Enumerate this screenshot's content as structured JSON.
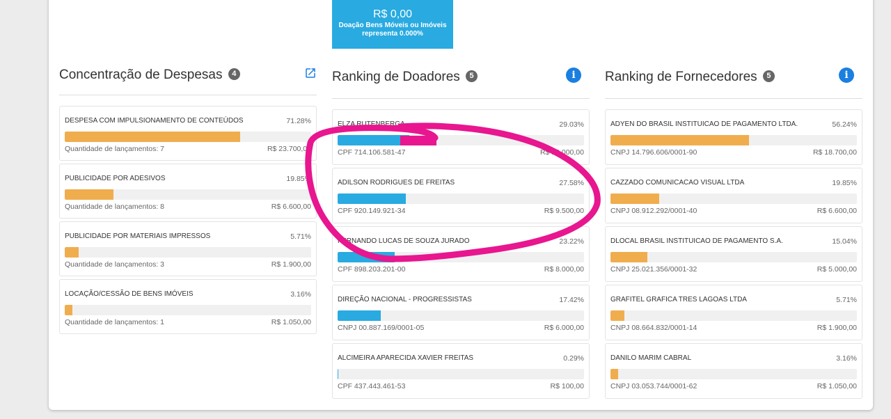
{
  "summary_box": {
    "amount": "R$ 0,00",
    "description_line1": "Doação Bens Móveis ou Imóveis",
    "description_line2": "representa 0.000%"
  },
  "despesas": {
    "title": "Concentração de Despesas",
    "count": "4",
    "items": [
      {
        "name": "DESPESA COM IMPULSIONAMENTO DE CONTEÚDOS",
        "pct": "71.28%",
        "fill_pct": 71.28,
        "sub": "Quantidade de lançamentos: 7",
        "value": "R$ 23.700,00"
      },
      {
        "name": "PUBLICIDADE POR ADESIVOS",
        "pct": "19.85%",
        "fill_pct": 19.85,
        "sub": "Quantidade de lançamentos: 8",
        "value": "R$ 6.600,00"
      },
      {
        "name": "PUBLICIDADE POR MATERIAIS IMPRESSOS",
        "pct": "5.71%",
        "fill_pct": 5.71,
        "sub": "Quantidade de lançamentos: 3",
        "value": "R$ 1.900,00"
      },
      {
        "name": "LOCAÇÃO/CESSÃO DE BENS IMÓVEIS",
        "pct": "3.16%",
        "fill_pct": 3.16,
        "sub": "Quantidade de lançamentos: 1",
        "value": "R$ 1.050,00"
      }
    ]
  },
  "doadores": {
    "title": "Ranking de Doadores",
    "count": "5",
    "items": [
      {
        "name": "ELZA RUTENBERGA",
        "pct": "29.03%",
        "fill_pct": 29.03,
        "sub": "CPF 714.106.581-47",
        "value": "R$ 10.000,00"
      },
      {
        "name": "ADILSON RODRIGUES DE FREITAS",
        "pct": "27.58%",
        "fill_pct": 27.58,
        "sub": "CPF 920.149.921-34",
        "value": "R$ 9.500,00"
      },
      {
        "name": "FERNANDO LUCAS DE SOUZA JURADO",
        "pct": "23.22%",
        "fill_pct": 23.22,
        "sub": "CPF 898.203.201-00",
        "value": "R$ 8.000,00"
      },
      {
        "name": "DIREÇÃO NACIONAL - PROGRESSISTAS",
        "pct": "17.42%",
        "fill_pct": 17.42,
        "sub": "CNPJ 00.887.169/0001-05",
        "value": "R$ 6.000,00"
      },
      {
        "name": "ALCIMEIRA APARECIDA XAVIER FREITAS",
        "pct": "0.29%",
        "fill_pct": 0.29,
        "sub": "CPF 437.443.461-53",
        "value": "R$ 100,00"
      }
    ]
  },
  "fornecedores": {
    "title": "Ranking de Fornecedores",
    "count": "5",
    "items": [
      {
        "name": "ADYEN DO BRASIL INSTITUICAO DE PAGAMENTO LTDA.",
        "pct": "56.24%",
        "fill_pct": 56.24,
        "sub": "CNPJ 14.796.606/0001-90",
        "value": "R$ 18.700,00"
      },
      {
        "name": "CAZZADO COMUNICACAO VISUAL LTDA",
        "pct": "19.85%",
        "fill_pct": 19.85,
        "sub": "CNPJ 08.912.292/0001-40",
        "value": "R$ 6.600,00"
      },
      {
        "name": "DLOCAL BRASIL INSTITUICAO DE PAGAMENTO S.A.",
        "pct": "15.04%",
        "fill_pct": 15.04,
        "sub": "CNPJ 25.021.356/0001-32",
        "value": "R$ 5.000,00"
      },
      {
        "name": "GRAFITEL GRAFICA TRES LAGOAS LTDA",
        "pct": "5.71%",
        "fill_pct": 5.71,
        "sub": "CNPJ 08.664.832/0001-14",
        "value": "R$ 1.900,00"
      },
      {
        "name": "DANILO MARIM CABRAL",
        "pct": "3.16%",
        "fill_pct": 3.16,
        "sub": "CNPJ 03.053.744/0001-62",
        "value": "R$ 1.050,00"
      }
    ]
  },
  "icons": {
    "info": "info-circle-icon",
    "external_link": "external-link-icon"
  },
  "colors": {
    "accent_blue": "#29aae1",
    "bar_orange": "#f0ad4e",
    "info_blue": "#1a7fe0",
    "annotation_magenta": "#e8168f"
  }
}
